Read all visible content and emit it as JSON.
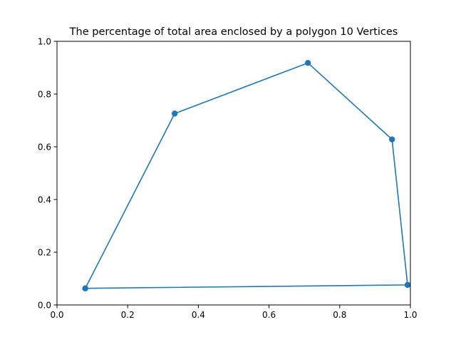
{
  "chart_data": {
    "type": "line",
    "title": "The percentage of total area enclosed by a polygon 10 Vertices",
    "xlabel": "",
    "ylabel": "",
    "xlim": [
      0.0,
      1.0
    ],
    "ylim": [
      0.0,
      1.0
    ],
    "x_ticks": [
      "0.0",
      "0.2",
      "0.4",
      "0.6",
      "0.8",
      "1.0"
    ],
    "y_ticks": [
      "0.0",
      "0.2",
      "0.4",
      "0.6",
      "0.8",
      "1.0"
    ],
    "grid": false,
    "marker": "circle",
    "color": "#1f77b4",
    "series": [
      {
        "x": [
          0.08,
          0.333,
          0.71,
          0.948,
          0.992,
          0.08
        ],
        "y": [
          0.063,
          0.726,
          0.918,
          0.628,
          0.076,
          0.063
        ]
      }
    ]
  }
}
